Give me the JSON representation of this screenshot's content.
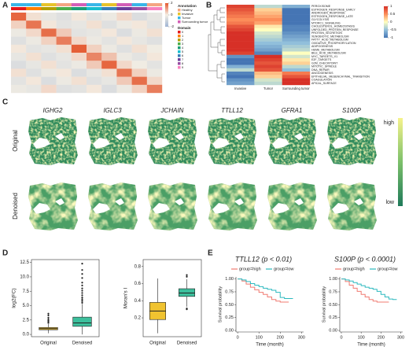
{
  "panel_labels": [
    "A",
    "B",
    "C",
    "D",
    "E"
  ],
  "spatial": {
    "genes": [
      "IGHG2",
      "IGLC3",
      "JCHAIN",
      "TTLL12",
      "GFRA1",
      "S100P"
    ],
    "rows": [
      "Original",
      "Denoised"
    ],
    "high": "high",
    "low": "low"
  },
  "chart_data": [
    {
      "type": "heatmap",
      "values": [
        [
          1.8,
          0.2,
          -0.3,
          -0.5,
          0.1,
          -0.4,
          -0.2,
          0.3,
          -0.6,
          -0.3
        ],
        [
          0.4,
          1.6,
          0.1,
          -0.4,
          -0.3,
          0.2,
          -0.5,
          -0.2,
          0.1,
          -0.4
        ],
        [
          -0.2,
          0.3,
          1.7,
          0.5,
          -0.4,
          -0.3,
          0.1,
          -0.6,
          -0.2,
          0.2
        ],
        [
          -0.5,
          -0.2,
          0.4,
          1.5,
          0.3,
          -0.2,
          -0.4,
          0.1,
          -0.3,
          -0.5
        ],
        [
          0.1,
          -0.4,
          -0.3,
          0.2,
          1.9,
          0.4,
          -0.2,
          -0.5,
          0.2,
          -0.1
        ],
        [
          -0.3,
          0.2,
          -0.5,
          -0.3,
          0.3,
          1.4,
          0.6,
          -0.2,
          -0.4,
          0.1
        ],
        [
          -0.6,
          -0.3,
          0.2,
          -0.4,
          -0.2,
          0.5,
          1.8,
          0.3,
          -0.1,
          -0.4
        ],
        [
          0.2,
          -0.5,
          -0.2,
          0.1,
          -0.6,
          -0.3,
          0.2,
          1.6,
          0.4,
          -0.2
        ],
        [
          -0.4,
          0.1,
          -0.6,
          -0.2,
          0.2,
          -0.5,
          -0.3,
          0.5,
          1.7,
          0.3
        ],
        [
          -0.2,
          -0.3,
          0.3,
          -0.5,
          -0.4,
          0.1,
          -0.6,
          -0.2,
          0.4,
          1.5
        ]
      ],
      "zlim": [
        -2,
        2
      ],
      "zticks": [
        -2,
        0,
        2
      ],
      "colors": [
        "#9fb4d4",
        "#f4efe4",
        "#e4572e"
      ],
      "annotation_title": "Annotation",
      "annotation_labels": [
        "Healthy",
        "Invasive",
        "Tumor",
        "Surrounding tumor"
      ],
      "annotation_colors": [
        "#f4a582",
        "#e7c32a",
        "#39b6e8",
        "#d35fb7"
      ],
      "annotation_bar_colors": [
        "#39b6e8",
        "#39b6e8",
        "#e7c32a",
        "#f4a582",
        "#d35fb7",
        "#39b6e8",
        "#e7c32a",
        "#d35fb7",
        "#39b6e8",
        "#f4a582"
      ],
      "domain_title": "Domain",
      "domain_labels": [
        "0",
        "1",
        "2",
        "3",
        "4",
        "5",
        "6",
        "7",
        "8",
        "9"
      ],
      "domain_colors": [
        "#e41a1c",
        "#ff7f00",
        "#b2a000",
        "#4daf4a",
        "#1b9e77",
        "#17becf",
        "#377eb8",
        "#6a3d9a",
        "#984ea3",
        "#f781bf"
      ]
    },
    {
      "type": "heatmap",
      "categories": [
        "PEROXISOME",
        "ESTROGEN_RESPONSE_EARLY",
        "ANDROGEN_RESPONSE",
        "ESTROGEN_RESPONSE_LATE",
        "GLYCOLYSIS",
        "MTORC1_SIGNALING",
        "CHOLESTEROL_HOMEOSTASIS",
        "UNFOLDED_PROTEIN_RESPONSE",
        "PROTEIN_SECRETION",
        "XENOBIOTIC_METABOLISM",
        "FATTY_ACID_METABOLISM",
        "OXIDATIVE_PHOSPHORYLATION",
        "ADIPOGENESIS",
        "HEME_METABOLISM",
        "BILE_ACID_METABOLISM",
        "MYC_TARGETS_V1",
        "E2F_TARGETS",
        "G2M_CHECKPOINT",
        "MITOTIC_SPINDLE",
        "DNA_REPAIR",
        "ANGIOGENESIS",
        "EPITHELIAL_MESENCHYMAL_TRANSITION",
        "COAGULATION",
        "APICAL_SURFACE"
      ],
      "columns": [
        "Invasive",
        "Tumor",
        "Surrounding tumor"
      ],
      "values": [
        [
          0.9,
          -0.3,
          -0.6
        ],
        [
          0.8,
          0.2,
          -1
        ],
        [
          0.7,
          0.3,
          -1
        ],
        [
          0.6,
          0.4,
          -1
        ],
        [
          0.5,
          0.5,
          -1
        ],
        [
          0.6,
          0.4,
          -1
        ],
        [
          0.8,
          0.1,
          -0.9
        ],
        [
          0.9,
          0,
          -0.9
        ],
        [
          1,
          -0.2,
          -0.8
        ],
        [
          1,
          -0.3,
          -0.7
        ],
        [
          1,
          -0.4,
          -0.6
        ],
        [
          1,
          -0.5,
          -0.5
        ],
        [
          1,
          -0.6,
          -0.4
        ],
        [
          1,
          -0.7,
          -0.3
        ],
        [
          0.9,
          -0.9,
          0
        ],
        [
          -0.8,
          1,
          -0.2
        ],
        [
          -1,
          0.9,
          0.1
        ],
        [
          -1,
          0.8,
          0.2
        ],
        [
          -0.6,
          0.9,
          -0.3
        ],
        [
          -0.3,
          0.8,
          -0.5
        ],
        [
          -0.9,
          0.3,
          0.6
        ],
        [
          -1,
          0.2,
          0.8
        ],
        [
          -0.8,
          -0.2,
          1
        ],
        [
          -0.7,
          -0.3,
          1
        ]
      ],
      "zlim": [
        -1,
        1
      ],
      "zticks": [
        -1,
        -0.5,
        0,
        0.5,
        1
      ],
      "colors": [
        "#4575b4",
        "#91bfdb",
        "#ffffbf",
        "#fc8d59",
        "#d73027"
      ]
    },
    {
      "type": "box",
      "ylabel": "log2(FC)",
      "categories": [
        "Original",
        "Denoised"
      ],
      "colors": [
        "#f0c330",
        "#3cbf9c"
      ],
      "boxes": [
        {
          "whisker_low": 0.2,
          "q1": 0.8,
          "median": 1.0,
          "q3": 1.2,
          "whisker_high": 1.8,
          "outliers": [
            2.0,
            2.2,
            2.4,
            2.6,
            2.9,
            3.3,
            3.6
          ]
        },
        {
          "whisker_low": 0.0,
          "q1": 1.4,
          "median": 2.0,
          "q3": 3.0,
          "whisker_high": 5.3,
          "outliers": [
            5.5,
            5.8,
            6.1,
            6.4,
            6.8,
            7.2,
            7.6,
            8.0,
            8.5,
            9.0,
            9.8,
            10.5,
            11.2,
            12.3
          ]
        }
      ],
      "ylim": [
        -0.4,
        13
      ],
      "yticks": [
        {
          "value": 0,
          "label": "0.0"
        },
        2.5,
        {
          "value": 5,
          "label": "5.0"
        },
        7.5,
        {
          "value": 10,
          "label": "10.0"
        },
        12.5
      ]
    },
    {
      "type": "box",
      "ylabel": "Moran's I",
      "categories": [
        "Original",
        "Denoised"
      ],
      "colors": [
        "#f0c330",
        "#3cbf9c"
      ],
      "boxes": [
        {
          "whisker_low": 0.02,
          "q1": 0.18,
          "median": 0.28,
          "q3": 0.38,
          "whisker_high": 0.66,
          "outliers": []
        },
        {
          "whisker_low": 0.33,
          "q1": 0.45,
          "median": 0.49,
          "q3": 0.54,
          "whisker_high": 0.65,
          "outliers": [
            0.3,
            0.31,
            0.68,
            0.7
          ]
        }
      ],
      "ylim": [
        -0.02,
        0.88
      ],
      "yticks": [
        0.2,
        0.4,
        0.6,
        0.8
      ]
    },
    {
      "type": "line",
      "title": "TTLL12 (p < 0.01)",
      "xlabel": "Time (month)",
      "ylabel": "Survival probability",
      "x": [
        0,
        20,
        40,
        60,
        80,
        100,
        120,
        140,
        160,
        180,
        200,
        220,
        240,
        260,
        280
      ],
      "series": [
        {
          "name": "group=high",
          "color": "#f07b72",
          "values": [
            1,
            0.96,
            0.9,
            0.84,
            0.79,
            0.74,
            0.7,
            0.65,
            0.6,
            0.57,
            0.55,
            0.55,
            0.55,
            null,
            null
          ]
        },
        {
          "name": "group=low",
          "color": "#2cb9bf",
          "values": [
            1,
            0.98,
            0.95,
            0.91,
            0.88,
            0.85,
            0.82,
            0.8,
            0.78,
            0.74,
            0.64,
            0.62,
            0.62,
            0.62,
            null
          ]
        }
      ],
      "xlim": [
        -8,
        310
      ],
      "xticks": [
        0,
        100,
        200,
        300
      ],
      "ylim": [
        -0.03,
        1.04
      ],
      "yticks": [
        {
          "value": 0,
          "label": "0.00"
        },
        0.25,
        {
          "value": 0.5,
          "label": "0.50"
        },
        0.75,
        {
          "value": 1,
          "label": "1.00"
        }
      ]
    },
    {
      "type": "line",
      "title": "S100P (p < 0.0001)",
      "xlabel": "Time (month)",
      "ylabel": "Survival probability",
      "x": [
        0,
        20,
        40,
        60,
        80,
        100,
        120,
        140,
        160,
        180,
        200,
        220,
        240,
        260,
        280
      ],
      "series": [
        {
          "name": "group=high",
          "color": "#f07b72",
          "values": [
            1,
            0.95,
            0.88,
            0.82,
            0.76,
            0.7,
            0.65,
            0.6,
            0.57,
            0.55,
            0.55,
            0.55,
            0.55,
            null,
            null
          ]
        },
        {
          "name": "group=low",
          "color": "#2cb9bf",
          "values": [
            1,
            0.98,
            0.96,
            0.93,
            0.9,
            0.87,
            0.84,
            0.82,
            0.8,
            0.76,
            0.7,
            0.65,
            0.61,
            0.6,
            0.6
          ]
        }
      ],
      "xlim": [
        -8,
        310
      ],
      "xticks": [
        0,
        100,
        200,
        300
      ],
      "ylim": [
        -0.03,
        1.04
      ],
      "yticks": [
        {
          "value": 0,
          "label": "0.00"
        },
        0.25,
        {
          "value": 0.5,
          "label": "0.50"
        },
        0.75,
        {
          "value": 1,
          "label": "1.00"
        }
      ]
    }
  ]
}
